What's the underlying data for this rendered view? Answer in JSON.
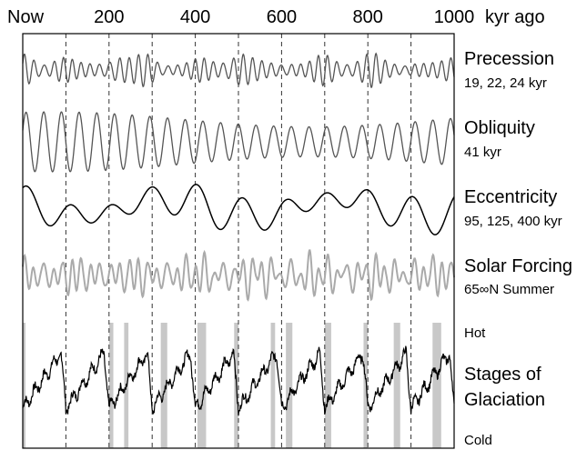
{
  "chart_data": {
    "type": "line",
    "title": "",
    "x_axis": {
      "label": "kyr ago",
      "start_label": "Now",
      "range": [
        0,
        1000
      ],
      "ticks": [
        200,
        400,
        600,
        800,
        1000
      ],
      "tick_labels": [
        "200",
        "400",
        "600",
        "800",
        "1000"
      ],
      "gridlines_dashed_at": [
        100,
        200,
        300,
        400,
        500,
        600,
        700,
        800,
        900
      ]
    },
    "series": [
      {
        "name": "Precession",
        "detail": "19, 22, 24 kyr",
        "color": "#555555",
        "periods_kyr": [
          19,
          22,
          24
        ]
      },
      {
        "name": "Obliquity",
        "detail": "41 kyr",
        "color": "#555555",
        "periods_kyr": [
          41
        ]
      },
      {
        "name": "Eccentricity",
        "detail": "95, 125, 400 kyr",
        "color": "#000000",
        "periods_kyr": [
          95,
          125,
          400
        ]
      },
      {
        "name": "Solar Forcing",
        "detail": "65∞N Summer",
        "color": "#aaaaaa"
      },
      {
        "name": "Stages of Glaciation",
        "detail": "",
        "color": "#000000"
      }
    ],
    "glaciation_axis": {
      "top_label": "Hot",
      "bottom_label": "Cold"
    },
    "interglacial_bands_kyr": [
      [
        0,
        6
      ],
      [
        200,
        210
      ],
      [
        235,
        245
      ],
      [
        320,
        335
      ],
      [
        405,
        425
      ],
      [
        490,
        500
      ],
      [
        575,
        585
      ],
      [
        610,
        625
      ],
      [
        700,
        715
      ],
      [
        790,
        800
      ],
      [
        860,
        875
      ],
      [
        950,
        970
      ]
    ]
  }
}
